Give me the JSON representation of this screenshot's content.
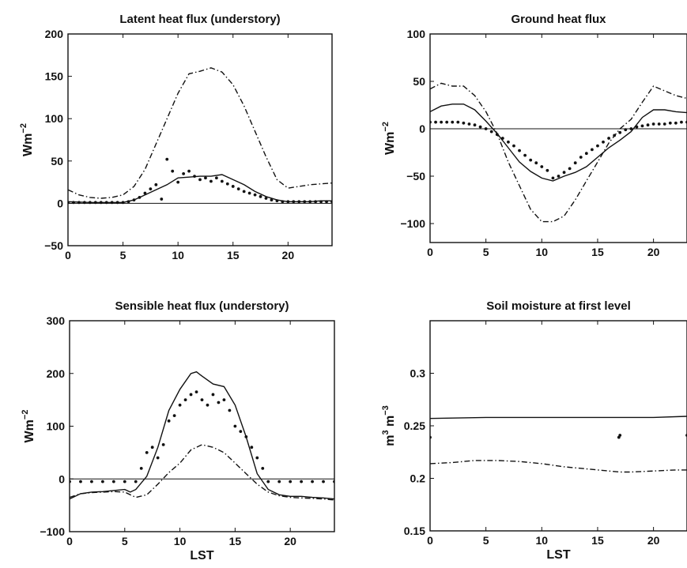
{
  "chart_data": [
    {
      "type": "line",
      "title": "Latent heat flux (understory)",
      "xlabel": "",
      "ylabel": "Wm",
      "ylabel_exp": "-2",
      "xlim": [
        0,
        24
      ],
      "ylim": [
        -50,
        200
      ],
      "xticks": [
        0,
        5,
        10,
        15,
        20
      ],
      "yticks": [
        -50,
        0,
        50,
        100,
        150,
        200
      ],
      "zero_line": true,
      "series": [
        {
          "style": "solid",
          "x": [
            0,
            2,
            4,
            5,
            6,
            7,
            8,
            9,
            10,
            11,
            12,
            13,
            14,
            15,
            16,
            17,
            18,
            19,
            20,
            21,
            22,
            23,
            24
          ],
          "y": [
            2,
            1,
            1,
            1,
            4,
            10,
            16,
            22,
            30,
            31,
            32,
            32,
            34,
            28,
            22,
            14,
            8,
            4,
            2,
            2,
            2,
            3,
            3
          ]
        },
        {
          "style": "dashdot",
          "x": [
            0,
            1,
            2,
            3,
            4,
            5,
            6,
            7,
            8,
            9,
            10,
            11,
            12,
            13,
            14,
            15,
            16,
            17,
            18,
            19,
            20,
            21,
            22,
            23,
            24
          ],
          "y": [
            16,
            10,
            7,
            6,
            7,
            10,
            20,
            40,
            70,
            100,
            130,
            153,
            156,
            160,
            155,
            140,
            115,
            85,
            55,
            28,
            18,
            20,
            22,
            23,
            24
          ]
        },
        {
          "style": "dotted",
          "x": [
            0,
            0.5,
            1,
            1.5,
            2,
            2.5,
            3,
            3.5,
            4,
            4.5,
            5,
            5.5,
            6,
            6.5,
            7,
            7.5,
            8,
            8.5,
            9,
            9.5,
            10,
            10.5,
            11,
            11.5,
            12,
            12.5,
            13,
            13.5,
            14,
            14.5,
            15,
            15.5,
            16,
            16.5,
            17,
            17.5,
            18,
            18.5,
            19,
            19.5,
            20,
            20.5,
            21,
            21.5,
            22,
            22.5,
            23,
            23.5,
            24
          ],
          "y": [
            1,
            1,
            1,
            1,
            1,
            1,
            1,
            1,
            1,
            1,
            1,
            2,
            4,
            7,
            12,
            17,
            22,
            5,
            52,
            38,
            25,
            35,
            38,
            32,
            28,
            30,
            26,
            30,
            26,
            23,
            20,
            17,
            14,
            12,
            10,
            8,
            6,
            4,
            3,
            2,
            2,
            2,
            2,
            2,
            2,
            2,
            2,
            2,
            2
          ]
        }
      ]
    },
    {
      "type": "line",
      "title": "Ground heat flux",
      "xlabel": "",
      "ylabel": "Wm",
      "ylabel_exp": "-2",
      "xlim": [
        0,
        23
      ],
      "ylim": [
        -120,
        100
      ],
      "xticks": [
        0,
        5,
        10,
        15,
        20
      ],
      "yticks": [
        -100,
        -50,
        0,
        50,
        100
      ],
      "zero_line": true,
      "series": [
        {
          "style": "solid",
          "x": [
            0,
            1,
            2,
            3,
            4,
            5,
            6,
            7,
            8,
            9,
            10,
            11,
            12,
            13,
            14,
            15,
            16,
            17,
            18,
            19,
            20,
            21,
            22,
            23
          ],
          "y": [
            18,
            24,
            26,
            26,
            20,
            8,
            -5,
            -20,
            -35,
            -45,
            -52,
            -55,
            -50,
            -46,
            -40,
            -30,
            -20,
            -12,
            -3,
            12,
            20,
            20,
            18,
            17
          ]
        },
        {
          "style": "dashdot",
          "x": [
            0,
            1,
            2,
            3,
            4,
            5,
            6,
            7,
            8,
            9,
            10,
            11,
            12,
            13,
            14,
            15,
            16,
            17,
            18,
            19,
            20,
            21,
            22,
            23
          ],
          "y": [
            42,
            48,
            45,
            45,
            35,
            18,
            -5,
            -35,
            -60,
            -85,
            -98,
            -98,
            -92,
            -75,
            -55,
            -35,
            -15,
            0,
            10,
            28,
            45,
            40,
            35,
            32
          ]
        },
        {
          "style": "dotted",
          "x": [
            0,
            0.5,
            1,
            1.5,
            2,
            2.5,
            3,
            3.5,
            4,
            4.5,
            5,
            5.5,
            6,
            6.5,
            7,
            7.5,
            8,
            8.5,
            9,
            9.5,
            10,
            10.5,
            11,
            11.5,
            12,
            12.5,
            13,
            13.5,
            14,
            14.5,
            15,
            15.5,
            16,
            16.5,
            17,
            17.5,
            18,
            18.5,
            19,
            19.5,
            20,
            20.5,
            21,
            21.5,
            22,
            22.5,
            23
          ],
          "y": [
            7,
            7,
            7,
            7,
            7,
            7,
            6,
            5,
            4,
            2,
            0,
            -3,
            -6,
            -10,
            -14,
            -18,
            -23,
            -28,
            -33,
            -36,
            -40,
            -44,
            -52,
            -50,
            -46,
            -42,
            -36,
            -30,
            -26,
            -22,
            -18,
            -14,
            -10,
            -7,
            -4,
            -1,
            0,
            2,
            3,
            4,
            5,
            5,
            5,
            6,
            6,
            7,
            7
          ]
        }
      ]
    },
    {
      "type": "line",
      "title": "Sensible heat flux (understory)",
      "xlabel": "LST",
      "ylabel": "Wm",
      "ylabel_exp": "-2",
      "xlim": [
        0,
        24
      ],
      "ylim": [
        -100,
        300
      ],
      "xticks": [
        0,
        5,
        10,
        15,
        20
      ],
      "yticks": [
        -100,
        0,
        100,
        200,
        300
      ],
      "zero_line": true,
      "series": [
        {
          "style": "solid",
          "x": [
            0,
            1,
            2,
            3,
            4,
            5,
            5.5,
            6,
            7,
            8,
            9,
            10,
            11,
            11.5,
            12,
            13,
            14,
            15,
            16,
            17,
            18,
            19,
            20,
            21,
            22,
            23,
            24
          ],
          "y": [
            -38,
            -28,
            -25,
            -24,
            -22,
            -20,
            -25,
            -20,
            5,
            60,
            130,
            170,
            200,
            203,
            195,
            180,
            175,
            140,
            80,
            10,
            -20,
            -30,
            -33,
            -33,
            -35,
            -36,
            -38
          ]
        },
        {
          "style": "dashdot",
          "x": [
            0,
            1,
            2,
            3,
            4,
            5,
            6,
            7,
            8,
            9,
            10,
            11,
            12,
            13,
            14,
            15,
            16,
            17,
            18,
            19,
            20,
            21,
            22,
            23,
            24
          ],
          "y": [
            -35,
            -28,
            -26,
            -25,
            -24,
            -25,
            -35,
            -30,
            -10,
            12,
            30,
            55,
            65,
            60,
            50,
            30,
            10,
            -10,
            -25,
            -32,
            -35,
            -36,
            -37,
            -38,
            -40
          ]
        },
        {
          "style": "dotted",
          "x": [
            0,
            1,
            2,
            3,
            4,
            5,
            6,
            6.5,
            7,
            7.5,
            8,
            8.5,
            9,
            9.5,
            10,
            10.5,
            11,
            11.5,
            12,
            12.5,
            13,
            13.5,
            14,
            14.5,
            15,
            15.5,
            16,
            16.5,
            17,
            17.5,
            18,
            19,
            20,
            21,
            22,
            23,
            24
          ],
          "y": [
            -5,
            -5,
            -5,
            -5,
            -5,
            -5,
            -5,
            20,
            50,
            60,
            40,
            65,
            110,
            120,
            140,
            150,
            160,
            165,
            150,
            140,
            160,
            145,
            150,
            130,
            100,
            90,
            80,
            60,
            40,
            20,
            -5,
            -5,
            -5,
            -5,
            -5,
            -5,
            -5
          ]
        }
      ]
    },
    {
      "type": "line",
      "title": "Soil moisture at first level",
      "xlabel": "LST",
      "ylabel": "m",
      "ylabel_sup1": "3",
      "ylabel_mid": " m",
      "ylabel_sup2": "-3",
      "xlim": [
        0,
        23
      ],
      "ylim": [
        0.15,
        0.35
      ],
      "xticks": [
        0,
        5,
        10,
        15,
        20
      ],
      "yticks": [
        "0.15",
        "0.2",
        "0.25",
        "0.3"
      ],
      "zero_line": false,
      "series": [
        {
          "style": "solid",
          "x": [
            0,
            5,
            10,
            15,
            20,
            23
          ],
          "y": [
            0.257,
            0.258,
            0.258,
            0.258,
            0.258,
            0.259
          ]
        },
        {
          "style": "dashdot",
          "x": [
            0,
            2,
            4,
            6,
            8,
            10,
            12,
            14,
            16,
            17,
            18,
            20,
            22,
            23
          ],
          "y": [
            0.214,
            0.215,
            0.217,
            0.217,
            0.216,
            0.214,
            0.211,
            0.209,
            0.207,
            0.206,
            0.206,
            0.207,
            0.208,
            0.208
          ]
        },
        {
          "style": "dotted",
          "x": [
            0,
            16.9,
            17,
            23
          ],
          "y": [
            0.239,
            0.239,
            0.241,
            0.241
          ]
        }
      ]
    }
  ]
}
